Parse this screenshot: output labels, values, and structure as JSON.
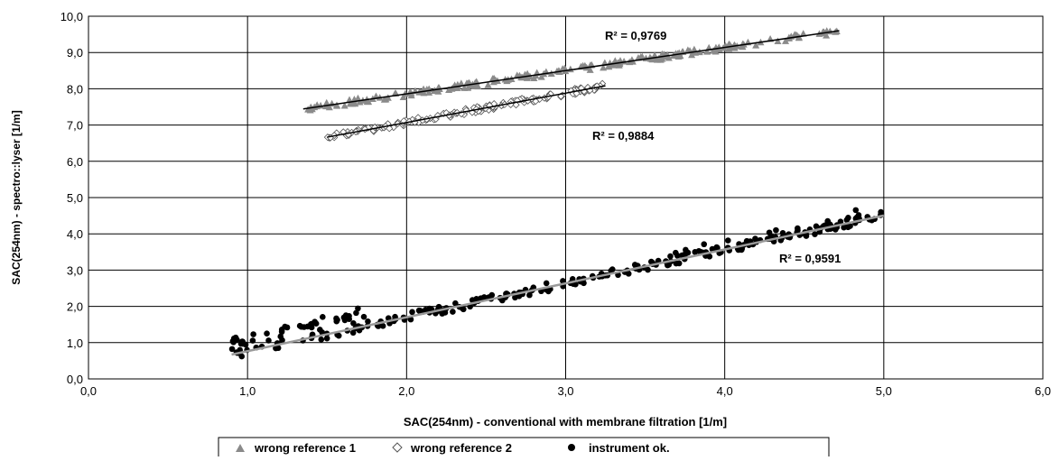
{
  "chart_data": {
    "type": "scatter",
    "xlabel": "SAC(254nm) - conventional with membrane filtration [1/m]",
    "ylabel": "SAC(254nm) - spectro::lyser [1/m]",
    "xlim": [
      0.0,
      6.0
    ],
    "ylim": [
      0.0,
      10.0
    ],
    "x_ticks": [
      "0,0",
      "1,0",
      "2,0",
      "3,0",
      "4,0",
      "5,0",
      "6,0"
    ],
    "y_ticks": [
      "0,0",
      "1,0",
      "2,0",
      "3,0",
      "4,0",
      "5,0",
      "6,0",
      "7,0",
      "8,0",
      "9,0",
      "10,0"
    ],
    "grid": true,
    "legend_position": "bottom",
    "series": [
      {
        "name": "wrong reference 1",
        "marker": "triangle",
        "color": "#8a8a8a",
        "x_range": [
          1.35,
          4.72
        ],
        "trend": {
          "slope": 0.64,
          "intercept": 6.58,
          "x_range": [
            1.35,
            4.72
          ]
        },
        "r2": "R² = 0,9769"
      },
      {
        "name": "wrong reference 2",
        "marker": "diamond-open",
        "color": "#555555",
        "x_range": [
          1.5,
          3.25
        ],
        "trend": {
          "slope": 0.81,
          "intercept": 5.45,
          "x_range": [
            1.5,
            3.25
          ]
        },
        "r2": "R² = 0,9884"
      },
      {
        "name": "instrument ok.",
        "marker": "circle",
        "color": "#000000",
        "x_range": [
          0.9,
          5.0
        ],
        "trend": {
          "slope": 0.935,
          "intercept": -0.17,
          "x_range": [
            0.9,
            5.0
          ]
        },
        "r2": "R² = 0,9591"
      }
    ]
  }
}
